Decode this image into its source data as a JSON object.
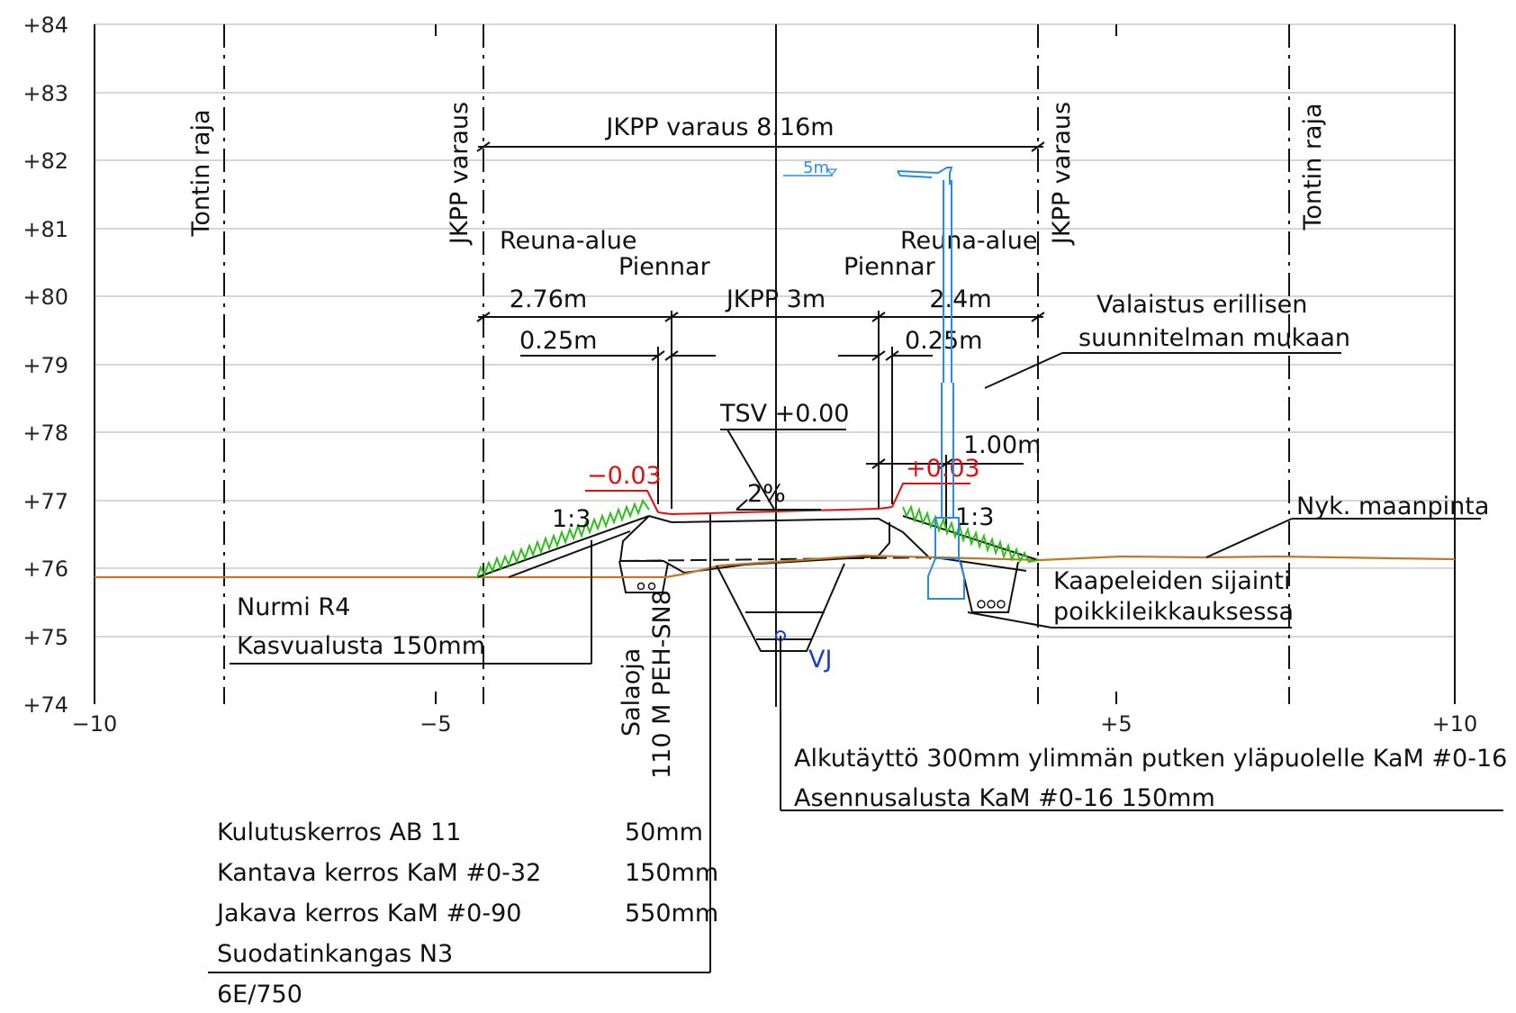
{
  "axes": {
    "y_ticks": [
      "+84",
      "+83",
      "+82",
      "+81",
      "+80",
      "+79",
      "+78",
      "+77",
      "+76",
      "+75",
      "+74"
    ],
    "x_ticks": [
      "−10",
      "−5",
      "+5",
      "+10"
    ]
  },
  "boundaries": {
    "tontin_raja": "Tontin raja",
    "jkpp_varaus": "JKPP varaus"
  },
  "dimensions": {
    "jkpp_varaus_total": "JKPP varaus 8.16m",
    "left_width": "2.76m",
    "center_width": "JKPP 3m",
    "right_width": "2.4m",
    "left_shoulder": "0.25m",
    "right_shoulder": "0.25m",
    "light_offset": "1.00m",
    "light_height": "5m",
    "reuna_alue": "Reuna-alue",
    "piennar": "Piennar"
  },
  "levels": {
    "tsv": "TSV +0.00",
    "left_edge": "−0.03",
    "right_edge": "+0.03",
    "crossfall": "2%",
    "slope_left": "1:3",
    "slope_right": "1:3",
    "vj": "VJ"
  },
  "annotations": {
    "valaistus_1": "Valaistus erillisen",
    "valaistus_2": "suunnitelman mukaan",
    "nyk_maanpinta": "Nyk. maanpinta",
    "kaapelit_1": "Kaapeleiden sijainti",
    "kaapelit_2": "poikkileikkauksessa",
    "nurmi": "Nurmi R4",
    "kasvualusta": "Kasvualusta 150mm",
    "salaoja_1": "Salaoja",
    "salaoja_2": "110 M PEH-SN8",
    "alkutaytto": "Alkutäyttö 300mm ylimmän putken yläpuolelle KaM #0-16",
    "asennusalusta": "Asennusalusta KaM #0-16 150mm"
  },
  "layers": [
    {
      "name": "Kulutuskerros AB 11",
      "thickness": "50mm"
    },
    {
      "name": "Kantava kerros KaM #0-32",
      "thickness": "150mm"
    },
    {
      "name": "Jakava kerros KaM #0-90",
      "thickness": "550mm"
    },
    {
      "name": "Suodatinkangas N3",
      "thickness": ""
    }
  ],
  "layer_code": "6E/750",
  "colors": {
    "ground": "#c0782a",
    "finished_surface": "#e01010",
    "grass": "#2fc01a",
    "lighting": "#2a8ce0",
    "drain": "#1a3fd0"
  }
}
